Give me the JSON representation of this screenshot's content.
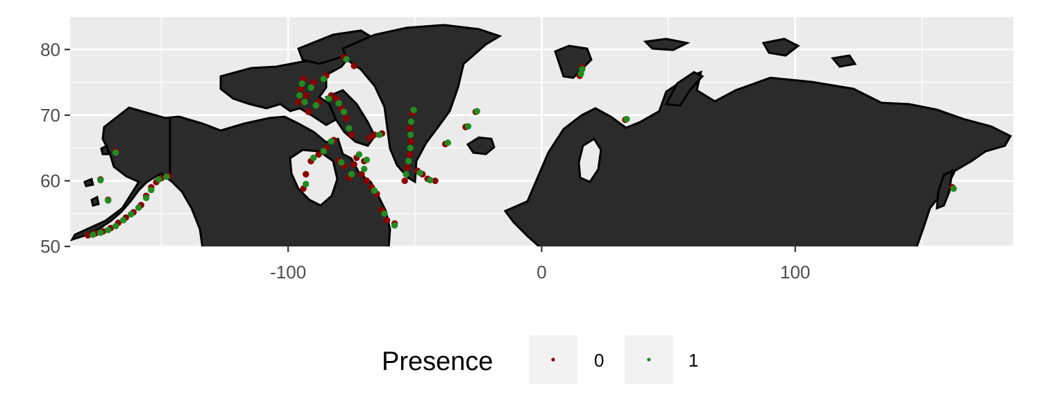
{
  "chart_data": {
    "type": "scatter",
    "title": "",
    "xlabel": "",
    "ylabel": "",
    "xlim": [
      -186,
      186
    ],
    "ylim": [
      50,
      85
    ],
    "x_ticks": [
      -100,
      0,
      100
    ],
    "y_ticks": [
      50,
      60,
      70,
      80
    ],
    "x_tick_labels": [
      "-100",
      "0",
      "100"
    ],
    "y_tick_labels": [
      "50",
      "60",
      "70",
      "80"
    ],
    "grid": true,
    "background": "#ebebeb",
    "land_color": "#2b2b2b",
    "legend": {
      "title": "Presence",
      "placement": "bottom",
      "entries": [
        {
          "label": "0",
          "color": "#8b0000"
        },
        {
          "label": "1",
          "color": "#228b22"
        }
      ]
    },
    "series": [
      {
        "name": "0",
        "color": "#8b0000",
        "points": [
          [
            -179,
            51.7
          ],
          [
            -176,
            52
          ],
          [
            -173,
            52.3
          ],
          [
            -170,
            52.8
          ],
          [
            -167,
            53.6
          ],
          [
            -164,
            54.4
          ],
          [
            -161,
            55.2
          ],
          [
            -158,
            56.3
          ],
          [
            -156,
            57.7
          ],
          [
            -154,
            59
          ],
          [
            -152,
            59.8
          ],
          [
            -150,
            60.4
          ],
          [
            -147,
            60.7
          ],
          [
            -174,
            60.2
          ],
          [
            -171,
            57.1
          ],
          [
            -168,
            64.5
          ],
          [
            -96,
            72
          ],
          [
            -95,
            74
          ],
          [
            -94,
            75.5
          ],
          [
            -93,
            73
          ],
          [
            -92,
            70.5
          ],
          [
            -90,
            75
          ],
          [
            -88,
            72
          ],
          [
            -85,
            76
          ],
          [
            -83,
            73
          ],
          [
            -81,
            72.5
          ],
          [
            -79,
            71
          ],
          [
            -77,
            69.5
          ],
          [
            -75,
            67
          ],
          [
            -73,
            63.5
          ],
          [
            -71,
            61
          ],
          [
            -69,
            60
          ],
          [
            -67,
            59
          ],
          [
            -65,
            58
          ],
          [
            -63,
            55.5
          ],
          [
            -61,
            54
          ],
          [
            -58,
            53.5
          ],
          [
            -94,
            58.8
          ],
          [
            -93,
            61
          ],
          [
            -91,
            63
          ],
          [
            -88,
            64
          ],
          [
            -85,
            65
          ],
          [
            -82,
            66.2
          ],
          [
            -80,
            63
          ],
          [
            -78,
            62.3
          ],
          [
            -76,
            60.5
          ],
          [
            -74,
            62.5
          ],
          [
            -70,
            63
          ],
          [
            -68,
            66.5
          ],
          [
            -66,
            67
          ],
          [
            -63,
            67.2
          ],
          [
            -78,
            78.8
          ],
          [
            -74,
            77.5
          ],
          [
            -54,
            60
          ],
          [
            -53,
            62
          ],
          [
            -52,
            64
          ],
          [
            -51.5,
            66
          ],
          [
            -52,
            68
          ],
          [
            -51,
            70.3
          ],
          [
            -49,
            61.5
          ],
          [
            -47,
            61
          ],
          [
            -45,
            60.3
          ],
          [
            -42,
            60
          ],
          [
            -38,
            65.6
          ],
          [
            -30,
            68.2
          ],
          [
            -26,
            70.5
          ],
          [
            15,
            76
          ],
          [
            16,
            77.3
          ],
          [
            33,
            69.3
          ],
          [
            162,
            59
          ]
        ]
      },
      {
        "name": "1",
        "color": "#228b22",
        "points": [
          [
            -177,
            51.8
          ],
          [
            -174,
            52.1
          ],
          [
            -171,
            52.5
          ],
          [
            -168,
            53.1
          ],
          [
            -165,
            54
          ],
          [
            -162,
            54.9
          ],
          [
            -159,
            55.9
          ],
          [
            -156,
            57.4
          ],
          [
            -154,
            58.6
          ],
          [
            -151,
            60.2
          ],
          [
            -148,
            60.6
          ],
          [
            -174,
            60.1
          ],
          [
            -171,
            57
          ],
          [
            -168,
            64.3
          ],
          [
            -95.5,
            73
          ],
          [
            -94.5,
            74.8
          ],
          [
            -93.5,
            72
          ],
          [
            -91,
            74.2
          ],
          [
            -89,
            71.5
          ],
          [
            -86,
            75.5
          ],
          [
            -84,
            72.5
          ],
          [
            -80,
            71.8
          ],
          [
            -78,
            70.5
          ],
          [
            -76,
            68
          ],
          [
            -72,
            64
          ],
          [
            -70,
            61.8
          ],
          [
            -66,
            58.5
          ],
          [
            -62,
            55
          ],
          [
            -58,
            53.2
          ],
          [
            -93,
            59.5
          ],
          [
            -90,
            63.5
          ],
          [
            -86,
            64.5
          ],
          [
            -83,
            66
          ],
          [
            -79,
            62.8
          ],
          [
            -75,
            61
          ],
          [
            -69,
            63.2
          ],
          [
            -64,
            67
          ],
          [
            -77,
            78.5
          ],
          [
            -53.5,
            61
          ],
          [
            -52.5,
            63
          ],
          [
            -51.8,
            65
          ],
          [
            -51.7,
            67
          ],
          [
            -51.5,
            69
          ],
          [
            -50.5,
            70.8
          ],
          [
            -48,
            61.2
          ],
          [
            -44,
            60.1
          ],
          [
            -37,
            65.8
          ],
          [
            -29,
            68.3
          ],
          [
            -25.5,
            70.6
          ],
          [
            15.5,
            76.3
          ],
          [
            16,
            77
          ],
          [
            33.5,
            69.4
          ],
          [
            162.5,
            58.8
          ]
        ]
      }
    ]
  }
}
